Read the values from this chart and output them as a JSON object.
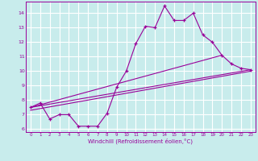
{
  "xlabel": "Windchill (Refroidissement éolien,°C)",
  "bg_color": "#c8ecec",
  "grid_color": "#ffffff",
  "line_color": "#990099",
  "xlim": [
    -0.5,
    23.5
  ],
  "ylim": [
    5.8,
    14.8
  ],
  "yticks": [
    6,
    7,
    8,
    9,
    10,
    11,
    12,
    13,
    14
  ],
  "xticks": [
    0,
    1,
    2,
    3,
    4,
    5,
    6,
    7,
    8,
    9,
    10,
    11,
    12,
    13,
    14,
    15,
    16,
    17,
    18,
    19,
    20,
    21,
    22,
    23
  ],
  "line1_x": [
    0,
    1,
    2,
    3,
    4,
    5,
    6,
    7,
    8,
    9,
    10,
    11,
    12,
    13,
    14,
    15,
    16,
    17,
    18,
    19,
    20,
    21,
    22,
    23
  ],
  "line1_y": [
    7.5,
    7.8,
    6.7,
    7.0,
    7.0,
    6.2,
    6.2,
    6.2,
    7.1,
    8.9,
    10.0,
    11.9,
    13.1,
    13.0,
    14.5,
    13.5,
    13.5,
    14.0,
    12.5,
    12.0,
    11.1,
    10.5,
    10.2,
    10.1
  ],
  "line2_x": [
    0,
    23
  ],
  "line2_y": [
    7.5,
    10.1
  ],
  "line3_x": [
    0,
    20
  ],
  "line3_y": [
    7.5,
    11.1
  ],
  "line4_x": [
    0,
    23
  ],
  "line4_y": [
    7.3,
    10.0
  ]
}
